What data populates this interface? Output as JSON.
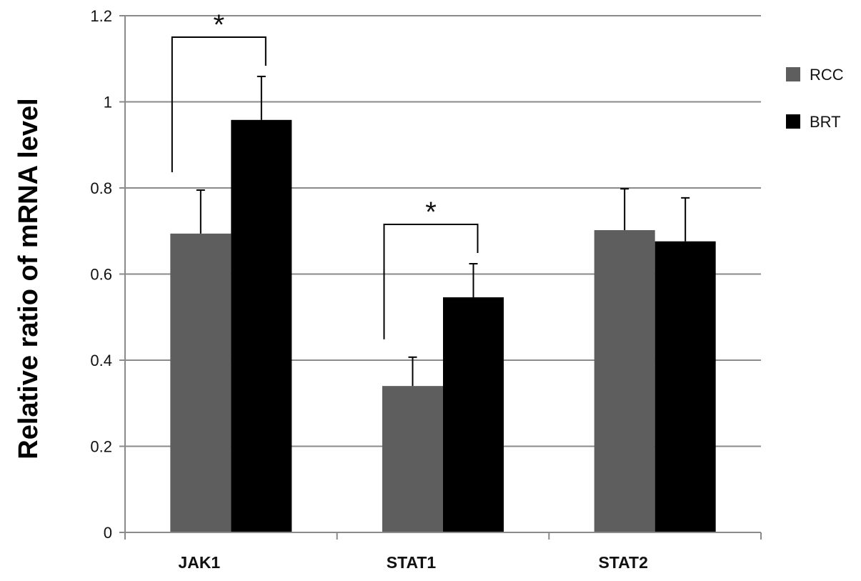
{
  "chart_data": {
    "type": "bar",
    "title": "",
    "xlabel": "",
    "ylabel": "Relative ratio of mRNA level",
    "ylim": [
      0,
      1.2
    ],
    "yticks": [
      "0",
      "0.2",
      "0.4",
      "0.6",
      "0.8",
      "1",
      "1.2"
    ],
    "grid": true,
    "legend_position": "right",
    "categories": [
      "JAK1",
      "STAT1",
      "STAT2"
    ],
    "series": [
      {
        "name": "RCC",
        "color": "#5e5e5e",
        "values": [
          0.694,
          0.34,
          0.702
        ],
        "errors": [
          0.101,
          0.067,
          0.096
        ]
      },
      {
        "name": "BRT",
        "color": "#000000",
        "values": [
          0.958,
          0.546,
          0.676
        ],
        "errors": [
          0.101,
          0.078,
          0.101
        ]
      }
    ],
    "annotations": [
      {
        "category": "JAK1",
        "text": "*"
      },
      {
        "category": "STAT1",
        "text": "*"
      }
    ]
  }
}
